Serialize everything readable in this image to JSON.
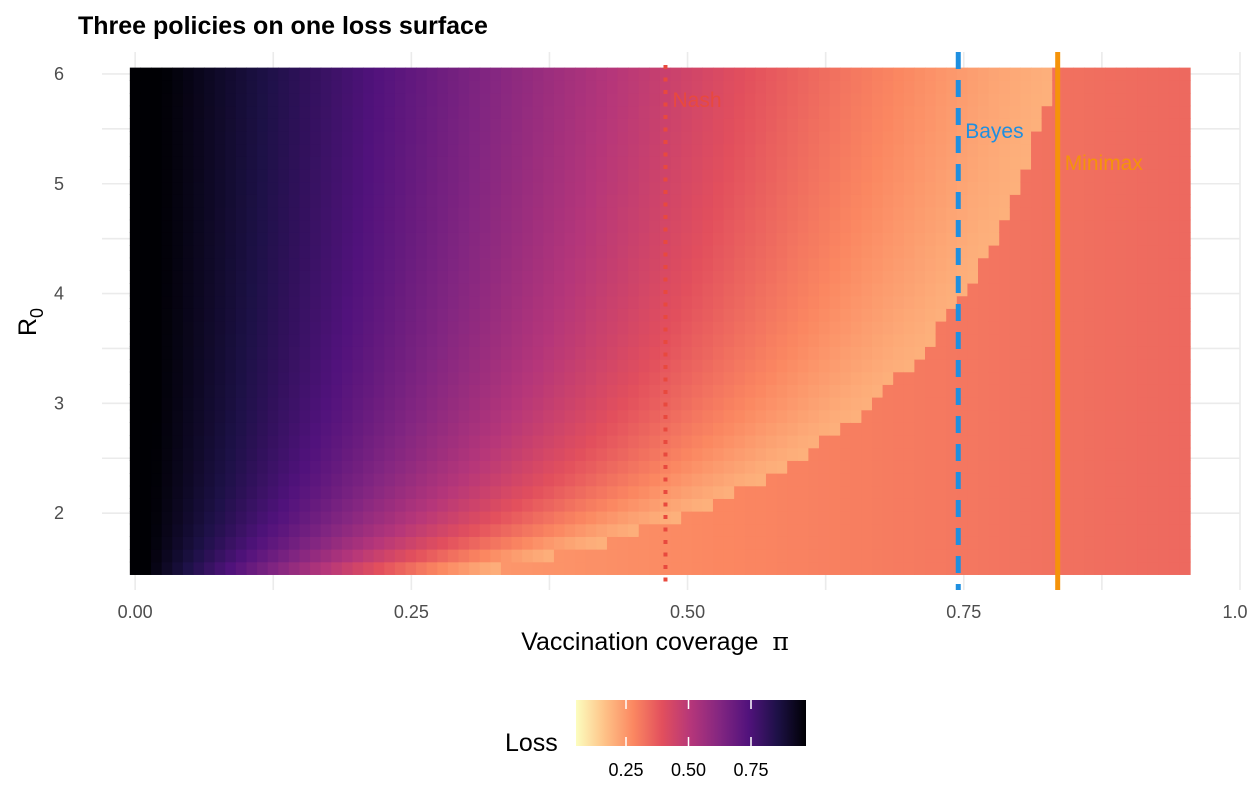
{
  "chart_data": {
    "type": "heatmap",
    "title": "Three policies on one loss surface",
    "xlabel": "Vaccination coverage",
    "xlabel_symbol": "π",
    "ylabel_main": "R",
    "ylabel_sub": "0",
    "xlim": [
      -0.03,
      1.0
    ],
    "ylim": [
      1.3,
      6.2
    ],
    "x_ticks": [
      0.0,
      0.25,
      0.5,
      0.75,
      1.0
    ],
    "x_tick_labels": [
      "0.00",
      "0.25",
      "0.50",
      "0.75",
      "1.00"
    ],
    "y_ticks": [
      2,
      3,
      4,
      5,
      6
    ],
    "y_tick_labels": [
      "2",
      "3",
      "4",
      "5",
      "6"
    ],
    "grid": true,
    "surface": {
      "x_range": [
        0.0,
        0.95
      ],
      "y_range": [
        1.5,
        6.0
      ],
      "nx": 100,
      "ny": 40,
      "loss_model": "0.2 + 0.8*(1 - pi*R0/(R0-1))^1.3 when pi < 1 - 1/R0, else 0.2 + 0.15*pi"
    },
    "colorscale": {
      "name": "magma (reversed)",
      "stops": [
        "#fcfdbf",
        "#fec287",
        "#fb8761",
        "#e24f5d",
        "#b5367a",
        "#832681",
        "#51127c",
        "#1d1147",
        "#000004"
      ],
      "range": [
        0.05,
        0.97
      ]
    },
    "policies": [
      {
        "name": "Nash",
        "x": 0.48,
        "color": "#e8493e",
        "style": "dotted"
      },
      {
        "name": "Bayes",
        "x": 0.745,
        "color": "#1f8fe0",
        "style": "dashed"
      },
      {
        "name": "Minimax",
        "x": 0.835,
        "color": "#f5930a",
        "style": "solid"
      }
    ],
    "legend": {
      "title": "Loss",
      "position": "bottom",
      "ticks": [
        0.25,
        0.5,
        0.75
      ],
      "tick_labels": [
        "0.25",
        "0.50",
        "0.75"
      ]
    }
  }
}
